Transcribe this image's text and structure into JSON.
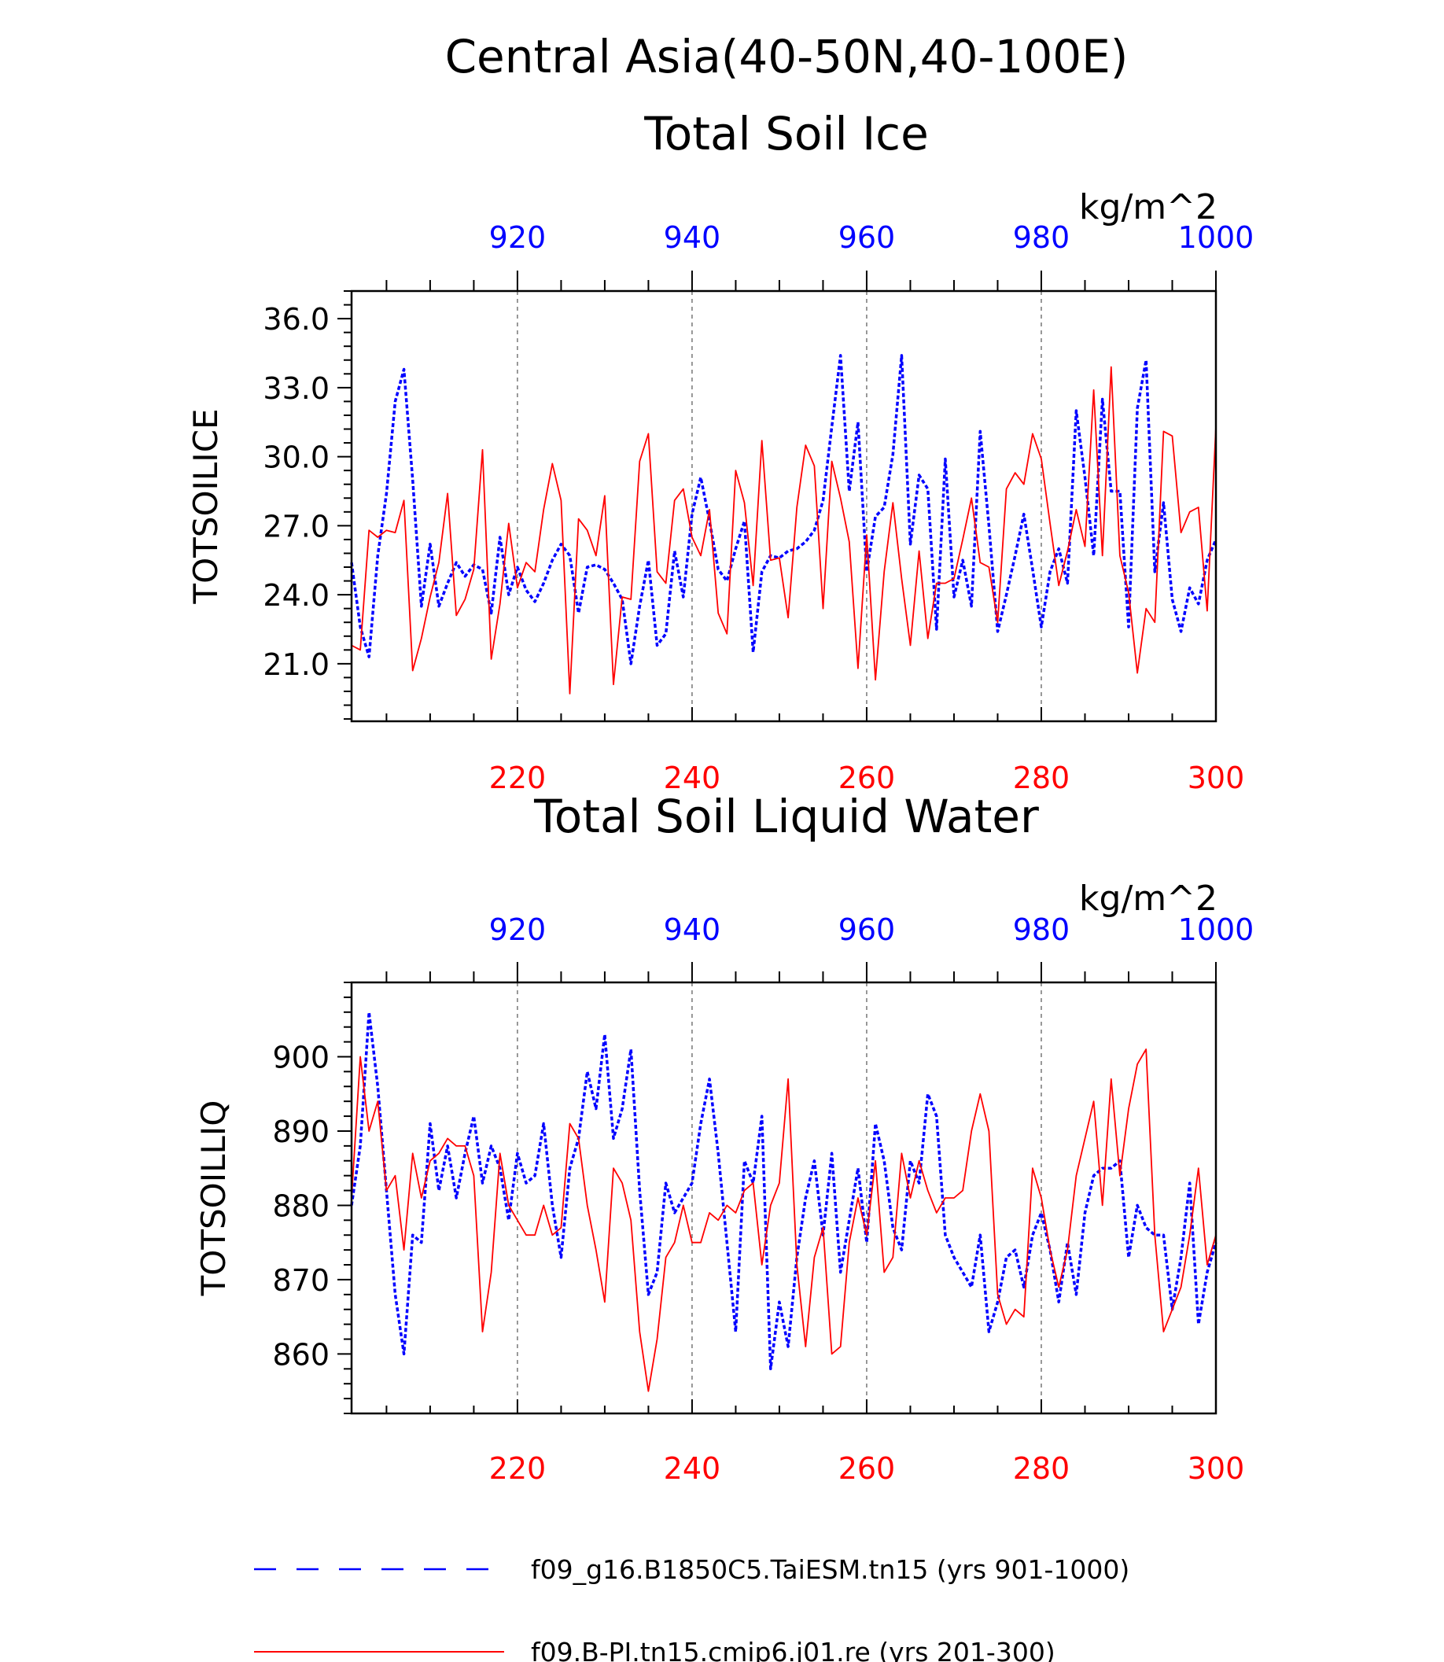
{
  "figure": {
    "title": "Central Asia(40-50N,40-100E)",
    "legend": {
      "placement": "bottom",
      "entries": [
        {
          "label": "f09_g16.B1850C5.TaiESM.tn15 (yrs 901-1000)",
          "color": "#0000ff",
          "style": "dashed"
        },
        {
          "label": "f09.B-PI.tn15.cmip6.j01.re (yrs 201-300)",
          "color": "#ff0000",
          "style": "solid"
        }
      ]
    }
  },
  "chart_data": [
    {
      "type": "line",
      "title": "Total Soil Ice",
      "units": "kg/m^2",
      "ylabel": "TOTSOILICE",
      "ylim": [
        18.5,
        37.2
      ],
      "ytick_labels": [
        "21.0",
        "24.0",
        "27.0",
        "30.0",
        "33.0",
        "36.0"
      ],
      "x_bottom": {
        "range": [
          201,
          300
        ],
        "tick_labels": [
          "220",
          "240",
          "260",
          "280",
          "300"
        ],
        "color": "#ff0000"
      },
      "x_top": {
        "range": [
          901,
          1000
        ],
        "tick_labels": [
          "920",
          "940",
          "960",
          "980",
          "1000"
        ],
        "color": "#0000ff"
      },
      "grid": "vertical dashed at major ticks",
      "series": [
        {
          "color": "#0000ff",
          "style": "dashed",
          "x_axis": "top",
          "values": [
            25.4,
            22.6,
            21.3,
            25.7,
            28.4,
            32.4,
            33.8,
            29.0,
            23.5,
            26.2,
            23.5,
            24.5,
            25.4,
            24.8,
            25.3,
            25.1,
            23.2,
            26.5,
            24.0,
            25.2,
            24.2,
            23.7,
            24.5,
            25.5,
            26.2,
            25.7,
            23.2,
            25.2,
            25.3,
            25.1,
            24.5,
            23.8,
            21.0,
            23.5,
            25.5,
            21.8,
            22.3,
            25.9,
            23.9,
            27.5,
            29.1,
            27.2,
            25.1,
            24.6,
            26.0,
            27.2,
            21.5,
            25.0,
            25.7,
            25.6,
            25.9,
            26.0,
            26.3,
            26.8,
            28.1,
            31.3,
            34.4,
            28.5,
            31.5,
            25.0,
            27.4,
            27.8,
            30.1,
            34.4,
            26.2,
            29.2,
            28.6,
            22.5,
            29.9,
            23.9,
            25.5,
            23.5,
            31.1,
            27.0,
            22.4,
            24.0,
            25.7,
            27.5,
            25.1,
            22.6,
            25.0,
            26.0,
            24.5,
            32.0,
            29.1,
            25.7,
            32.5,
            28.5,
            28.5,
            22.6,
            32.1,
            34.2,
            25.0,
            28.0,
            23.8,
            22.4,
            24.3,
            23.6,
            25.5,
            26.4
          ]
        },
        {
          "color": "#ff0000",
          "style": "solid",
          "x_axis": "bottom",
          "values": [
            21.8,
            21.6,
            26.8,
            26.5,
            26.8,
            26.7,
            28.1,
            20.7,
            22.1,
            23.9,
            25.4,
            28.4,
            23.1,
            23.8,
            25.1,
            30.3,
            21.2,
            23.6,
            27.1,
            24.3,
            25.4,
            25.0,
            27.7,
            29.7,
            28.1,
            19.7,
            27.3,
            26.8,
            25.7,
            28.3,
            20.1,
            23.9,
            23.8,
            29.8,
            31.0,
            25.0,
            24.5,
            28.1,
            28.6,
            26.5,
            25.7,
            27.7,
            23.2,
            22.3,
            29.4,
            28.0,
            24.4,
            30.7,
            25.5,
            25.6,
            23.0,
            27.8,
            30.5,
            29.6,
            23.4,
            29.8,
            28.2,
            26.3,
            20.8,
            26.6,
            20.3,
            25.0,
            28.0,
            24.7,
            21.8,
            25.9,
            22.1,
            24.5,
            24.5,
            24.7,
            26.4,
            28.2,
            25.4,
            25.2,
            22.8,
            28.6,
            29.3,
            28.8,
            31.0,
            29.9,
            27.1,
            24.4,
            25.9,
            27.7,
            26.1,
            32.9,
            25.7,
            33.9,
            25.7,
            24.1,
            20.6,
            23.4,
            22.8,
            31.1,
            30.9,
            26.7,
            27.6,
            27.8,
            23.3,
            31.3
          ]
        }
      ]
    },
    {
      "type": "line",
      "title": "Total Soil Liquid Water",
      "units": "kg/m^2",
      "ylabel": "TOTSOILLIQ",
      "ylim": [
        852,
        910
      ],
      "ytick_labels": [
        "860",
        "870",
        "880",
        "890",
        "900"
      ],
      "x_bottom": {
        "range": [
          201,
          300
        ],
        "tick_labels": [
          "220",
          "240",
          "260",
          "280",
          "300"
        ],
        "color": "#ff0000"
      },
      "x_top": {
        "range": [
          901,
          1000
        ],
        "tick_labels": [
          "920",
          "940",
          "960",
          "980",
          "1000"
        ],
        "color": "#0000ff"
      },
      "grid": "vertical dashed at major ticks",
      "series": [
        {
          "color": "#0000ff",
          "style": "dashed",
          "x_axis": "top",
          "values": [
            880,
            888,
            906,
            896,
            882,
            868,
            860,
            876,
            875,
            891,
            882,
            888,
            881,
            887,
            892,
            883,
            888,
            885,
            878,
            887,
            883,
            884,
            891,
            880,
            873,
            885,
            889,
            898,
            893,
            903,
            889,
            893,
            901,
            882,
            868,
            871,
            883,
            879,
            881,
            883,
            891,
            897,
            887,
            875,
            863,
            886,
            883,
            892,
            858,
            867,
            861,
            873,
            881,
            886,
            876,
            887,
            871,
            878,
            885,
            875,
            891,
            886,
            877,
            874,
            886,
            883,
            895,
            892,
            876,
            873,
            871,
            869,
            876,
            863,
            867,
            873,
            874,
            869,
            876,
            879,
            874,
            867,
            875,
            868,
            879,
            884,
            885,
            885,
            886,
            873,
            880,
            877,
            876,
            876,
            866,
            873,
            883,
            864,
            871,
            875
          ]
        },
        {
          "color": "#ff0000",
          "style": "solid",
          "x_axis": "bottom",
          "values": [
            881,
            900,
            890,
            894,
            882,
            884,
            874,
            887,
            881,
            886,
            887,
            889,
            888,
            888,
            884,
            863,
            871,
            887,
            880,
            878,
            876,
            876,
            880,
            876,
            877,
            891,
            889,
            880,
            874,
            867,
            885,
            883,
            878,
            863,
            855,
            862,
            873,
            875,
            880,
            875,
            875,
            879,
            878,
            880,
            879,
            882,
            883,
            872,
            880,
            883,
            897,
            872,
            861,
            873,
            877,
            860,
            861,
            875,
            881,
            876,
            886,
            871,
            873,
            887,
            881,
            886,
            882,
            879,
            881,
            881,
            882,
            890,
            895,
            890,
            868,
            864,
            866,
            865,
            885,
            881,
            874,
            869,
            874,
            884,
            889,
            894,
            880,
            897,
            884,
            893,
            899,
            901,
            876,
            863,
            866,
            869,
            876,
            885,
            872,
            876
          ]
        }
      ]
    }
  ]
}
